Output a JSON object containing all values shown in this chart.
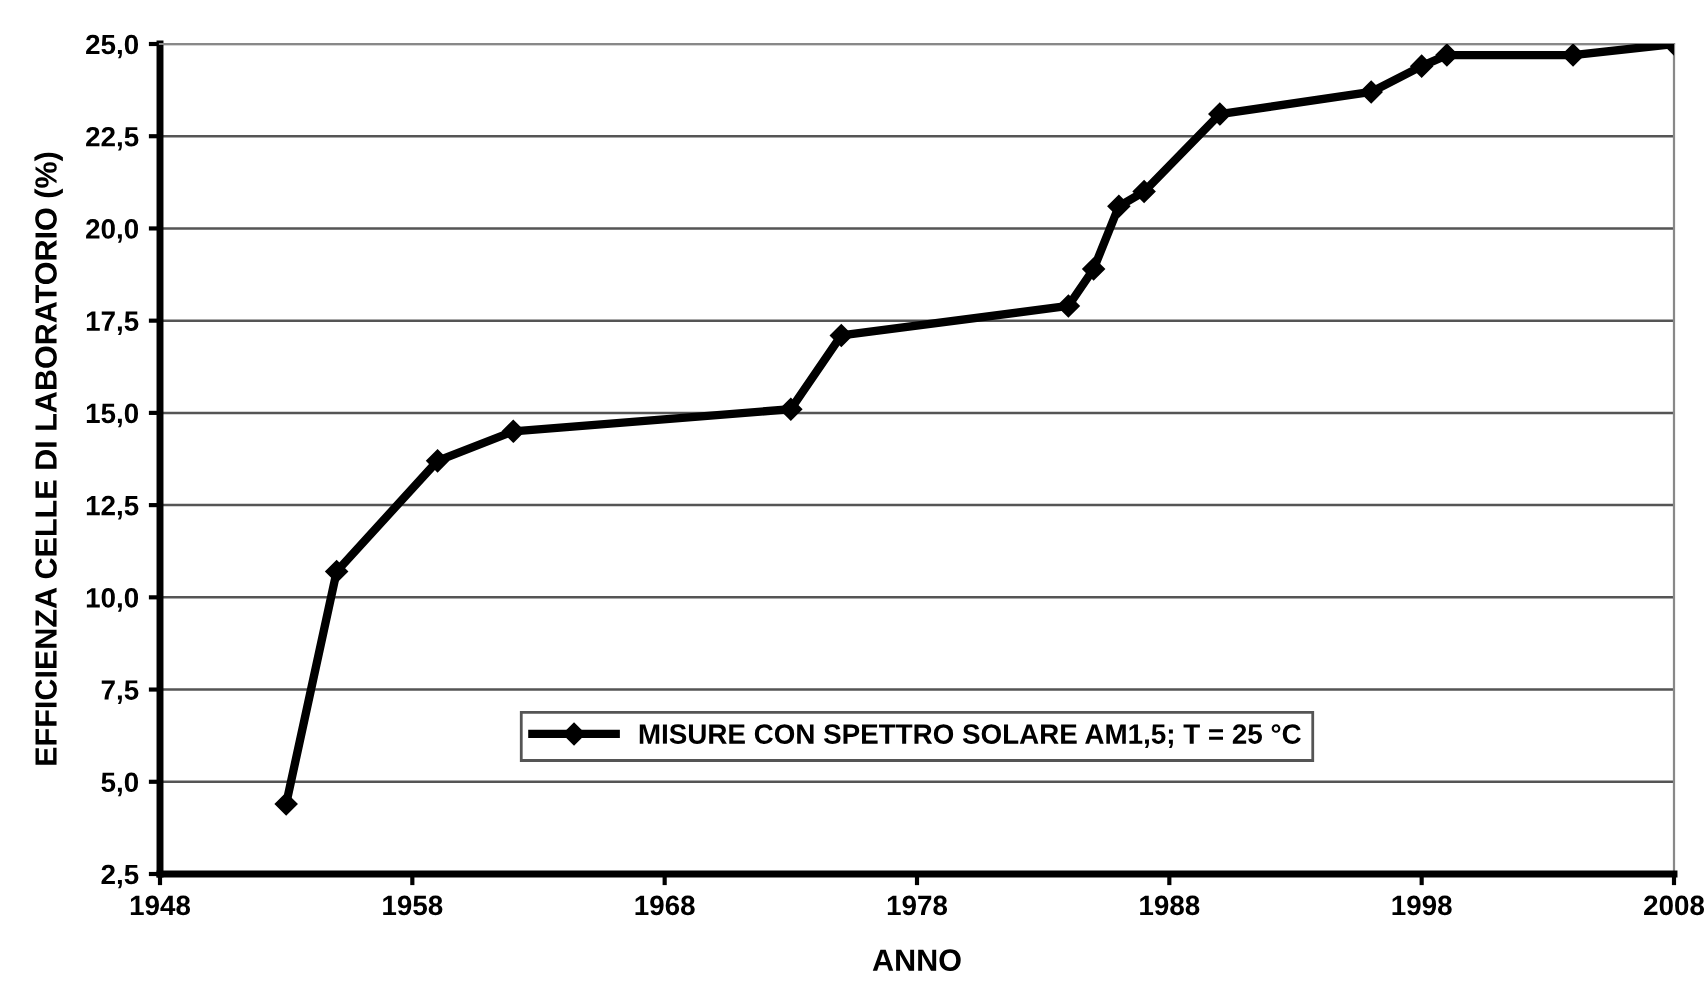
{
  "chart_data": {
    "type": "line",
    "xlabel": "ANNO",
    "ylabel": "EFFICIENZA CELLE DI LABORATORIO (%)",
    "x": [
      1953,
      1955,
      1959,
      1962,
      1973,
      1975,
      1984,
      1985,
      1986,
      1987,
      1990,
      1996,
      1998,
      1999,
      2004,
      2008
    ],
    "series": [
      {
        "name": "MISURE CON SPETTRO SOLARE AM1,5; T = 25 °C",
        "color": "#000000",
        "values": [
          4.4,
          10.7,
          13.7,
          14.5,
          15.1,
          17.1,
          17.9,
          18.9,
          20.6,
          21.0,
          23.1,
          23.7,
          24.4,
          24.7,
          24.7,
          25.0
        ]
      }
    ],
    "xlim": [
      1948,
      2008
    ],
    "xticks": [
      1948,
      1958,
      1968,
      1978,
      1988,
      1998,
      2008
    ],
    "ylim": [
      2.5,
      25
    ],
    "yticks": [
      {
        "value": 2.5,
        "label": "2,5"
      },
      {
        "value": 5,
        "label": "5,0"
      },
      {
        "value": 7.5,
        "label": "7,5"
      },
      {
        "value": 10,
        "label": "10,0"
      },
      {
        "value": 12.5,
        "label": "12,5"
      },
      {
        "value": 15,
        "label": "15,0"
      },
      {
        "value": 17.5,
        "label": "17,5"
      },
      {
        "value": 20,
        "label": "20,0"
      },
      {
        "value": 22.5,
        "label": "22,5"
      },
      {
        "value": 25,
        "label": "25,0"
      }
    ],
    "grid": "y",
    "legend": "bottom",
    "marker": "diamond",
    "line_style": "solid"
  }
}
